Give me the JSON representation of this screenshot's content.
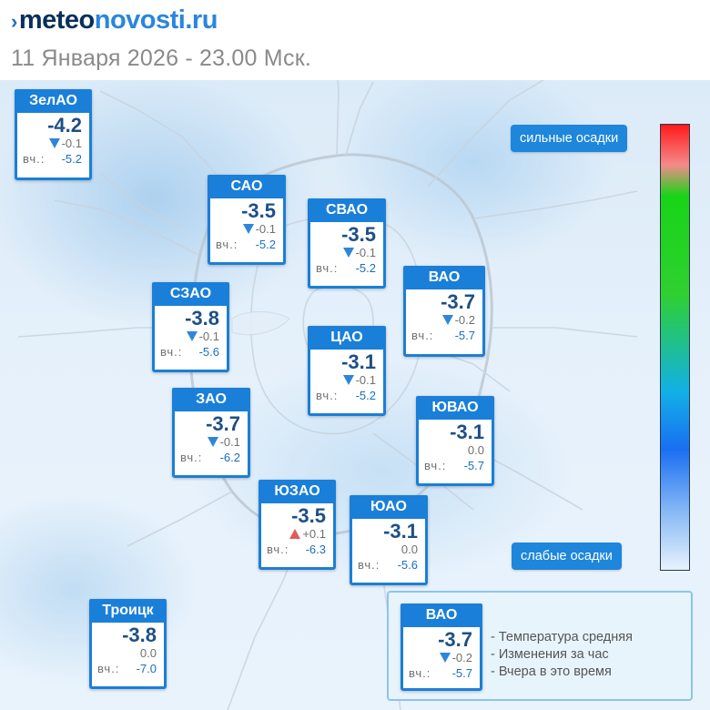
{
  "header": {
    "logo_mark": "›",
    "logo_part1": "meteo",
    "logo_part2": "novosti.ru",
    "date_line": "11 Января 2026 - 23.00 Мск."
  },
  "yesterday_label": "вч.:",
  "colors": {
    "brand_blue": "#1a7fd8",
    "temp_text": "#1d4f86",
    "rise_arrow": "#e25b5b",
    "fall_arrow": "#2f86d8"
  },
  "districts": [
    {
      "name": "ЗелАО",
      "temp": "-4.2",
      "trend": "down",
      "change": "-0.1",
      "yesterday": "-5.2"
    },
    {
      "name": "САО",
      "temp": "-3.5",
      "trend": "down",
      "change": "-0.1",
      "yesterday": "-5.2"
    },
    {
      "name": "СВАО",
      "temp": "-3.5",
      "trend": "down",
      "change": "-0.1",
      "yesterday": "-5.2"
    },
    {
      "name": "ВАО",
      "temp": "-3.7",
      "trend": "down",
      "change": "-0.2",
      "yesterday": "-5.7"
    },
    {
      "name": "СЗАО",
      "temp": "-3.8",
      "trend": "down",
      "change": "-0.1",
      "yesterday": "-5.6"
    },
    {
      "name": "ЦАО",
      "temp": "-3.1",
      "trend": "down",
      "change": "-0.1",
      "yesterday": "-5.2"
    },
    {
      "name": "ЗАО",
      "temp": "-3.7",
      "trend": "down",
      "change": "-0.1",
      "yesterday": "-6.2"
    },
    {
      "name": "ЮВАО",
      "temp": "-3.1",
      "trend": "none",
      "change": "0.0",
      "yesterday": "-5.7"
    },
    {
      "name": "ЮЗАО",
      "temp": "-3.5",
      "trend": "up",
      "change": "+0.1",
      "yesterday": "-6.3"
    },
    {
      "name": "ЮАО",
      "temp": "-3.1",
      "trend": "none",
      "change": "0.0",
      "yesterday": "-5.6"
    },
    {
      "name": "Троицк",
      "temp": "-3.8",
      "trend": "none",
      "change": "0.0",
      "yesterday": "-7.0"
    }
  ],
  "precip_scale": {
    "top_label": "сильные осадки",
    "bottom_label": "слабые осадки"
  },
  "legend": {
    "sample": {
      "name": "ВАО",
      "temp": "-3.7",
      "trend": "down",
      "change": "-0.2",
      "yesterday": "-5.7"
    },
    "line_avg": "- Температура средняя",
    "line_change": "- Изменения за час",
    "line_yesterday": "- Вчера в это время"
  }
}
